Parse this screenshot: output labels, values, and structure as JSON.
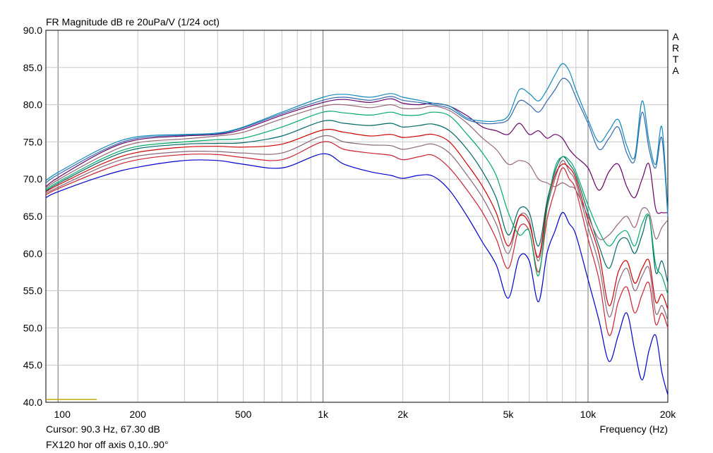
{
  "chart_data": {
    "type": "line",
    "title": "FR Magnitude dB re 20uPa/V (1/24 oct)",
    "side_label": "ARTA",
    "xlabel": "Frequency (Hz)",
    "xscale": "log",
    "xlim": [
      90,
      20000
    ],
    "ylim": [
      40,
      90
    ],
    "x_ticks": [
      {
        "value": 100,
        "label": "100"
      },
      {
        "value": 200,
        "label": "200"
      },
      {
        "value": 500,
        "label": "500"
      },
      {
        "value": 1000,
        "label": "1k"
      },
      {
        "value": 2000,
        "label": "2k"
      },
      {
        "value": 5000,
        "label": "5k"
      },
      {
        "value": 10000,
        "label": "10k"
      },
      {
        "value": 20000,
        "label": "20k"
      }
    ],
    "y_ticks": [
      {
        "value": 90,
        "label": "90.0"
      },
      {
        "value": 85,
        "label": "85.0"
      },
      {
        "value": 80,
        "label": "80.0"
      },
      {
        "value": 75,
        "label": "75.0"
      },
      {
        "value": 70,
        "label": "70.0"
      },
      {
        "value": 65,
        "label": "65.0"
      },
      {
        "value": 60,
        "label": "60.0"
      },
      {
        "value": 55,
        "label": "55.0"
      },
      {
        "value": 50,
        "label": "50.0"
      },
      {
        "value": 45,
        "label": "45.0"
      },
      {
        "value": 40,
        "label": "40.0"
      }
    ],
    "grid": true,
    "cursor_text": "Cursor: 90.3 Hz, 67.30 dB",
    "description_text": "FX120 hor off axis 0,10..90°",
    "x": [
      90,
      100,
      150,
      200,
      300,
      400,
      500,
      700,
      1000,
      1200,
      1500,
      1800,
      2000,
      2300,
      2600,
      3000,
      3500,
      4000,
      4500,
      5000,
      5500,
      6000,
      6500,
      7000,
      7500,
      8000,
      8500,
      9000,
      10000,
      11000,
      12000,
      13000,
      14000,
      15000,
      16000,
      17000,
      18000,
      19000,
      20000
    ],
    "series": [
      {
        "color": "#0000cc",
        "values": [
          67.5,
          68.3,
          70.5,
          71.6,
          72.5,
          72.5,
          72.0,
          71.5,
          73.4,
          72.0,
          71.0,
          70.5,
          70.1,
          70.5,
          70.4,
          68.5,
          65.0,
          61.5,
          58.5,
          54.0,
          59.5,
          59.0,
          53.5,
          60.0,
          63.0,
          65.5,
          64.0,
          62.5,
          56.5,
          51.0,
          45.5,
          49.0,
          52.0,
          47.0,
          43.0,
          47.0,
          49.0,
          44.0,
          41.0
        ]
      },
      {
        "color": "#cc2233",
        "values": [
          67.9,
          68.7,
          71.3,
          72.6,
          73.3,
          73.3,
          72.9,
          72.6,
          75.0,
          74.0,
          73.5,
          73.2,
          72.6,
          73.0,
          73.2,
          71.5,
          68.5,
          65.5,
          62.0,
          58.0,
          63.5,
          63.0,
          57.5,
          64.5,
          68.5,
          71.5,
          70.0,
          68.5,
          62.0,
          56.5,
          49.0,
          53.5,
          55.5,
          52.0,
          54.5,
          56.0,
          50.5,
          52.0,
          50.0
        ]
      },
      {
        "color": "#886677",
        "values": [
          68.1,
          68.9,
          71.8,
          73.1,
          73.7,
          73.7,
          73.5,
          73.5,
          75.8,
          75.0,
          74.6,
          74.5,
          74.0,
          74.4,
          74.7,
          73.5,
          70.5,
          67.5,
          64.0,
          60.0,
          65.0,
          64.5,
          59.0,
          66.0,
          70.0,
          72.5,
          71.0,
          69.5,
          63.5,
          58.5,
          51.5,
          56.0,
          58.0,
          55.0,
          57.0,
          58.0,
          52.0,
          53.0,
          51.0
        ]
      },
      {
        "color": "#cc0000",
        "values": [
          68.3,
          69.2,
          72.2,
          73.6,
          74.3,
          74.4,
          74.3,
          74.7,
          76.6,
          76.3,
          75.8,
          76.0,
          75.6,
          75.8,
          76.0,
          75.0,
          72.0,
          69.0,
          65.5,
          61.0,
          65.0,
          64.0,
          59.5,
          66.5,
          70.5,
          72.0,
          71.5,
          70.0,
          64.5,
          60.0,
          53.0,
          57.5,
          59.0,
          56.0,
          58.0,
          59.0,
          53.5,
          54.5,
          52.5
        ]
      },
      {
        "color": "#006666",
        "values": [
          68.4,
          69.4,
          72.6,
          74.1,
          74.7,
          74.8,
          74.9,
          75.8,
          77.8,
          77.5,
          77.2,
          77.5,
          77.0,
          77.2,
          77.4,
          76.5,
          74.0,
          71.0,
          67.5,
          62.5,
          66.0,
          65.5,
          61.0,
          67.0,
          71.0,
          73.0,
          72.0,
          70.5,
          65.5,
          61.0,
          58.0,
          61.5,
          62.0,
          60.0,
          62.5,
          65.0,
          57.5,
          59.0,
          56.0
        ]
      },
      {
        "color": "#00aa66",
        "values": [
          68.6,
          69.6,
          72.9,
          74.4,
          75.0,
          75.3,
          75.5,
          77.0,
          79.0,
          78.9,
          78.6,
          79.0,
          78.6,
          78.6,
          79.0,
          78.5,
          76.0,
          73.5,
          70.5,
          65.5,
          62.5,
          63.0,
          57.0,
          66.0,
          71.5,
          73.0,
          72.5,
          71.0,
          66.5,
          63.0,
          61.0,
          62.5,
          63.0,
          61.0,
          64.0,
          65.0,
          58.5,
          57.0,
          54.5
        ]
      },
      {
        "color": "#996677",
        "values": [
          68.8,
          69.9,
          73.3,
          74.9,
          75.4,
          75.8,
          76.3,
          78.1,
          79.8,
          80.0,
          79.6,
          80.0,
          79.5,
          79.5,
          79.8,
          79.2,
          77.5,
          75.5,
          74.0,
          72.0,
          72.5,
          72.0,
          70.0,
          69.5,
          69.0,
          69.5,
          69.0,
          68.5,
          65.0,
          62.0,
          62.5,
          64.0,
          65.0,
          63.5,
          66.0,
          65.5,
          62.0,
          63.5,
          64.5
        ]
      },
      {
        "color": "#660066",
        "values": [
          69.0,
          70.2,
          73.8,
          75.3,
          75.8,
          76.0,
          76.7,
          78.6,
          80.3,
          80.7,
          80.3,
          80.8,
          80.2,
          80.0,
          80.2,
          79.8,
          78.5,
          77.0,
          76.5,
          76.0,
          77.5,
          76.0,
          76.5,
          75.5,
          76.0,
          75.5,
          74.0,
          73.0,
          71.5,
          68.5,
          71.0,
          72.0,
          69.0,
          67.5,
          70.0,
          72.0,
          66.0,
          65.5,
          65.5
        ]
      },
      {
        "color": "#3366aa",
        "values": [
          69.5,
          70.6,
          74.0,
          75.5,
          75.9,
          76.1,
          76.9,
          78.8,
          80.6,
          81.0,
          80.6,
          81.1,
          80.6,
          80.3,
          80.0,
          79.5,
          78.0,
          77.5,
          77.5,
          78.0,
          80.5,
          80.0,
          79.0,
          80.5,
          82.0,
          83.5,
          83.0,
          81.0,
          77.5,
          74.0,
          75.5,
          77.0,
          73.5,
          72.5,
          79.0,
          74.0,
          71.5,
          75.5,
          65.0
        ]
      },
      {
        "color": "#1188bb",
        "values": [
          69.8,
          70.9,
          74.3,
          75.7,
          76.0,
          76.2,
          77.0,
          79.0,
          81.0,
          81.4,
          81.0,
          81.5,
          81.0,
          80.6,
          80.2,
          79.8,
          78.2,
          77.8,
          77.8,
          78.5,
          82.0,
          81.5,
          80.5,
          82.0,
          84.0,
          85.5,
          84.5,
          82.0,
          78.0,
          75.0,
          76.5,
          78.0,
          74.5,
          73.0,
          80.5,
          75.0,
          72.0,
          77.0,
          65.5
        ]
      }
    ]
  }
}
